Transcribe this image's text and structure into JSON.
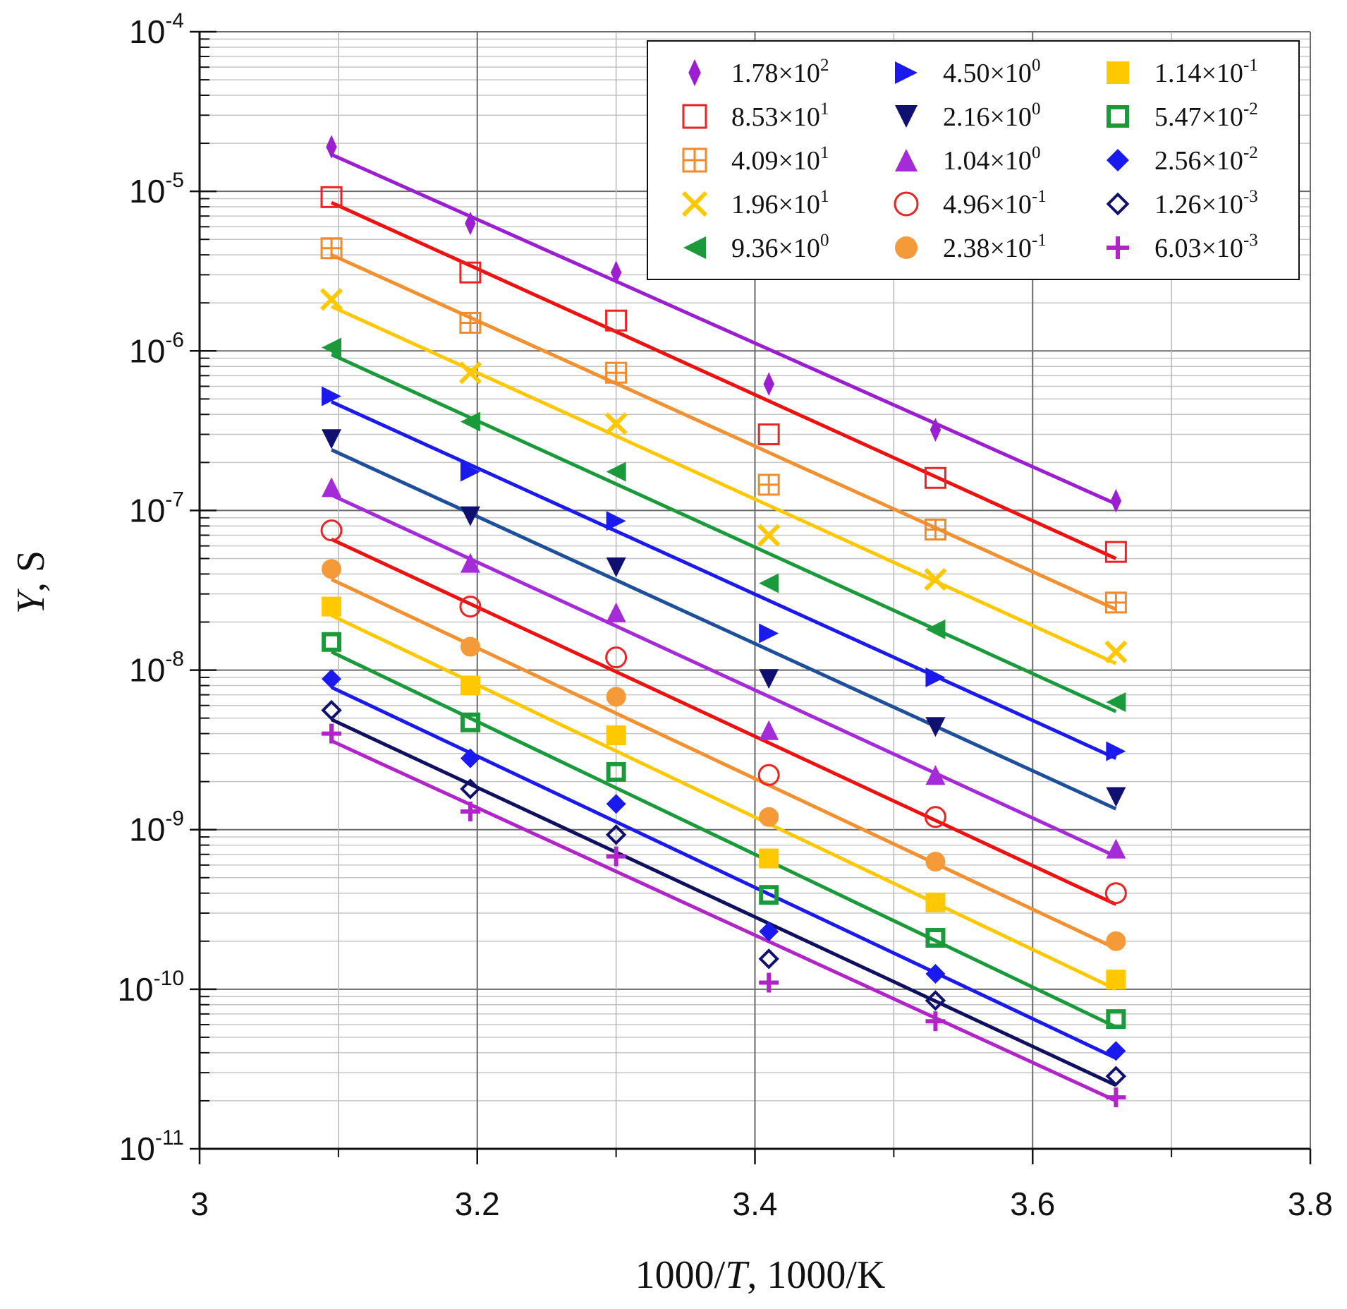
{
  "chart_data": {
    "type": "scatter",
    "title": "",
    "xlabel": {
      "text_before": "1000/",
      "italic": "T",
      "text_after": ", 1000/K"
    },
    "ylabel": {
      "italic": "Y",
      "text_after": ", S"
    },
    "xlim": [
      3.0,
      3.8
    ],
    "ylim_exp": [
      -11,
      -4
    ],
    "yscale": "log",
    "grid": true,
    "legend_position": "top-right",
    "x_ticks": [
      {
        "value": 3.0,
        "label": "3"
      },
      {
        "value": 3.2,
        "label": "3.2"
      },
      {
        "value": 3.4,
        "label": "3.4"
      },
      {
        "value": 3.6,
        "label": "3.6"
      },
      {
        "value": 3.8,
        "label": "3.8"
      }
    ],
    "y_ticks": [
      {
        "exp": -4,
        "base": "10",
        "sup": "-4"
      },
      {
        "exp": -5,
        "base": "10",
        "sup": "-5"
      },
      {
        "exp": -6,
        "base": "10",
        "sup": "-6"
      },
      {
        "exp": -7,
        "base": "10",
        "sup": "-7"
      },
      {
        "exp": -8,
        "base": "10",
        "sup": "-8"
      },
      {
        "exp": -9,
        "base": "10",
        "sup": "-9"
      },
      {
        "exp": -10,
        "base": "10",
        "sup": "-10"
      },
      {
        "exp": -11,
        "base": "10",
        "sup": "-11"
      }
    ],
    "x": [
      3.095,
      3.195,
      3.3,
      3.41,
      3.53,
      3.66
    ],
    "series": [
      {
        "name": "1.78×10^2",
        "mant": "1.78×10",
        "sup": "2",
        "marker": "thin-diamond",
        "color": "#9b1fd1",
        "line_color": "#9b1fd1",
        "values": [
          1.9e-05,
          6.3e-06,
          3.1e-06,
          6.2e-07,
          3.2e-07,
          1.15e-07
        ],
        "fit": [
          1.7e-05,
          1.1e-07
        ]
      },
      {
        "name": "8.53×10^1",
        "mant": "8.53×10",
        "sup": "1",
        "marker": "square-open",
        "color": "#ee2222",
        "line_color": "#ee1111",
        "values": [
          9.2e-06,
          3.1e-06,
          1.55e-06,
          3e-07,
          1.6e-07,
          5.5e-08
        ],
        "fit": [
          8.5e-06,
          5e-08
        ]
      },
      {
        "name": "4.09×10^1",
        "mant": "4.09×10",
        "sup": "1",
        "marker": "square-grid",
        "color": "#f08a2a",
        "line_color": "#f39030",
        "values": [
          4.4e-06,
          1.5e-06,
          7.3e-07,
          1.45e-07,
          7.6e-08,
          2.65e-08
        ],
        "fit": [
          4e-06,
          2.4e-08
        ]
      },
      {
        "name": "1.96×10^1",
        "mant": "1.96×10",
        "sup": "1",
        "marker": "x",
        "color": "#ffc800",
        "line_color": "#ffc800",
        "values": [
          2.1e-06,
          7.3e-07,
          3.5e-07,
          7e-08,
          3.7e-08,
          1.3e-08
        ],
        "fit": [
          1.9e-06,
          1.1e-08
        ]
      },
      {
        "name": "9.36×10^0",
        "mant": "9.36×10",
        "sup": "0",
        "marker": "tri-left",
        "color": "#1a9a3a",
        "line_color": "#1a9a3a",
        "values": [
          1.05e-06,
          3.6e-07,
          1.75e-07,
          3.5e-08,
          1.8e-08,
          6.3e-09
        ],
        "fit": [
          9.5e-07,
          5.5e-09
        ]
      },
      {
        "name": "4.50×10^0",
        "mant": "4.50×10",
        "sup": "0",
        "marker": "tri-right",
        "color": "#1a1aee",
        "line_color": "#1a1aee",
        "values": [
          5.2e-07,
          1.75e-07,
          8.6e-08,
          1.7e-08,
          9e-09,
          3.1e-09
        ],
        "fit": [
          4.8e-07,
          2.8e-09
        ]
      },
      {
        "name": "2.16×10^0",
        "mant": "2.16×10",
        "sup": "0",
        "marker": "tri-down",
        "color": "#101070",
        "line_color": "#1e4f9a",
        "values": [
          2.8e-07,
          9.2e-08,
          4.4e-08,
          8.8e-09,
          4.4e-09,
          1.6e-09
        ],
        "fit": [
          2.4e-07,
          1.35e-09
        ]
      },
      {
        "name": "1.04×10^0",
        "mant": "1.04×10",
        "sup": "0",
        "marker": "tri-up",
        "color": "#a52ad8",
        "line_color": "#a52ad8",
        "values": [
          1.4e-07,
          4.7e-08,
          2.3e-08,
          4.2e-09,
          2.2e-09,
          7.6e-10
        ],
        "fit": [
          1.25e-07,
          6.8e-10
        ]
      },
      {
        "name": "4.96×10^-1",
        "mant": "4.96×10",
        "sup": "-1",
        "marker": "circle-open",
        "color": "#ee2222",
        "line_color": "#ee1111",
        "values": [
          7.5e-08,
          2.5e-08,
          1.2e-08,
          2.2e-09,
          1.2e-09,
          4e-10
        ],
        "fit": [
          6.6e-08,
          3.4e-10
        ]
      },
      {
        "name": "2.38×10^-1",
        "mant": "2.38×10",
        "sup": "-1",
        "marker": "circle",
        "color": "#f59a38",
        "line_color": "#f39030",
        "values": [
          4.3e-08,
          1.4e-08,
          6.8e-09,
          1.2e-09,
          6.3e-10,
          2e-10
        ],
        "fit": [
          3.7e-08,
          1.8e-10
        ]
      },
      {
        "name": "1.14×10^-1",
        "mant": "1.14×10",
        "sup": "-1",
        "marker": "square",
        "color": "#ffc800",
        "line_color": "#ffc800",
        "values": [
          2.5e-08,
          8e-09,
          3.9e-09,
          6.6e-10,
          3.5e-10,
          1.15e-10
        ],
        "fit": [
          2.2e-08,
          1e-10
        ]
      },
      {
        "name": "5.47×10^-2",
        "mant": "5.47×10",
        "sup": "-2",
        "marker": "square-thick",
        "color": "#1a9a3a",
        "line_color": "#1a9a3a",
        "values": [
          1.5e-08,
          4.7e-09,
          2.3e-09,
          3.9e-10,
          2.1e-10,
          6.5e-11
        ],
        "fit": [
          1.3e-08,
          5.8e-11
        ]
      },
      {
        "name": "2.56×10^-2",
        "mant": "2.56×10",
        "sup": "-2",
        "marker": "diamond",
        "color": "#1a1aee",
        "line_color": "#1a1aee",
        "values": [
          8.8e-09,
          2.8e-09,
          1.45e-09,
          2.3e-10,
          1.25e-10,
          4.1e-11
        ],
        "fit": [
          7.8e-09,
          3.7e-11
        ]
      },
      {
        "name": "1.26×10^-3",
        "mant": "1.26×10",
        "sup": "-3",
        "marker": "diamond-open",
        "color": "#101070",
        "line_color": "#101060",
        "values": [
          5.6e-09,
          1.8e-09,
          9.3e-10,
          1.55e-10,
          8.5e-11,
          2.85e-11
        ],
        "fit": [
          4.9e-09,
          2.5e-11
        ]
      },
      {
        "name": "6.03×10^-3",
        "mant": "6.03×10",
        "sup": "-3",
        "marker": "plus",
        "color": "#b024c8",
        "line_color": "#b024c8",
        "values": [
          4e-09,
          1.3e-09,
          6.8e-10,
          1.1e-10,
          6.3e-11,
          2.1e-11
        ],
        "fit": [
          3.6e-09,
          2e-11
        ]
      }
    ]
  }
}
